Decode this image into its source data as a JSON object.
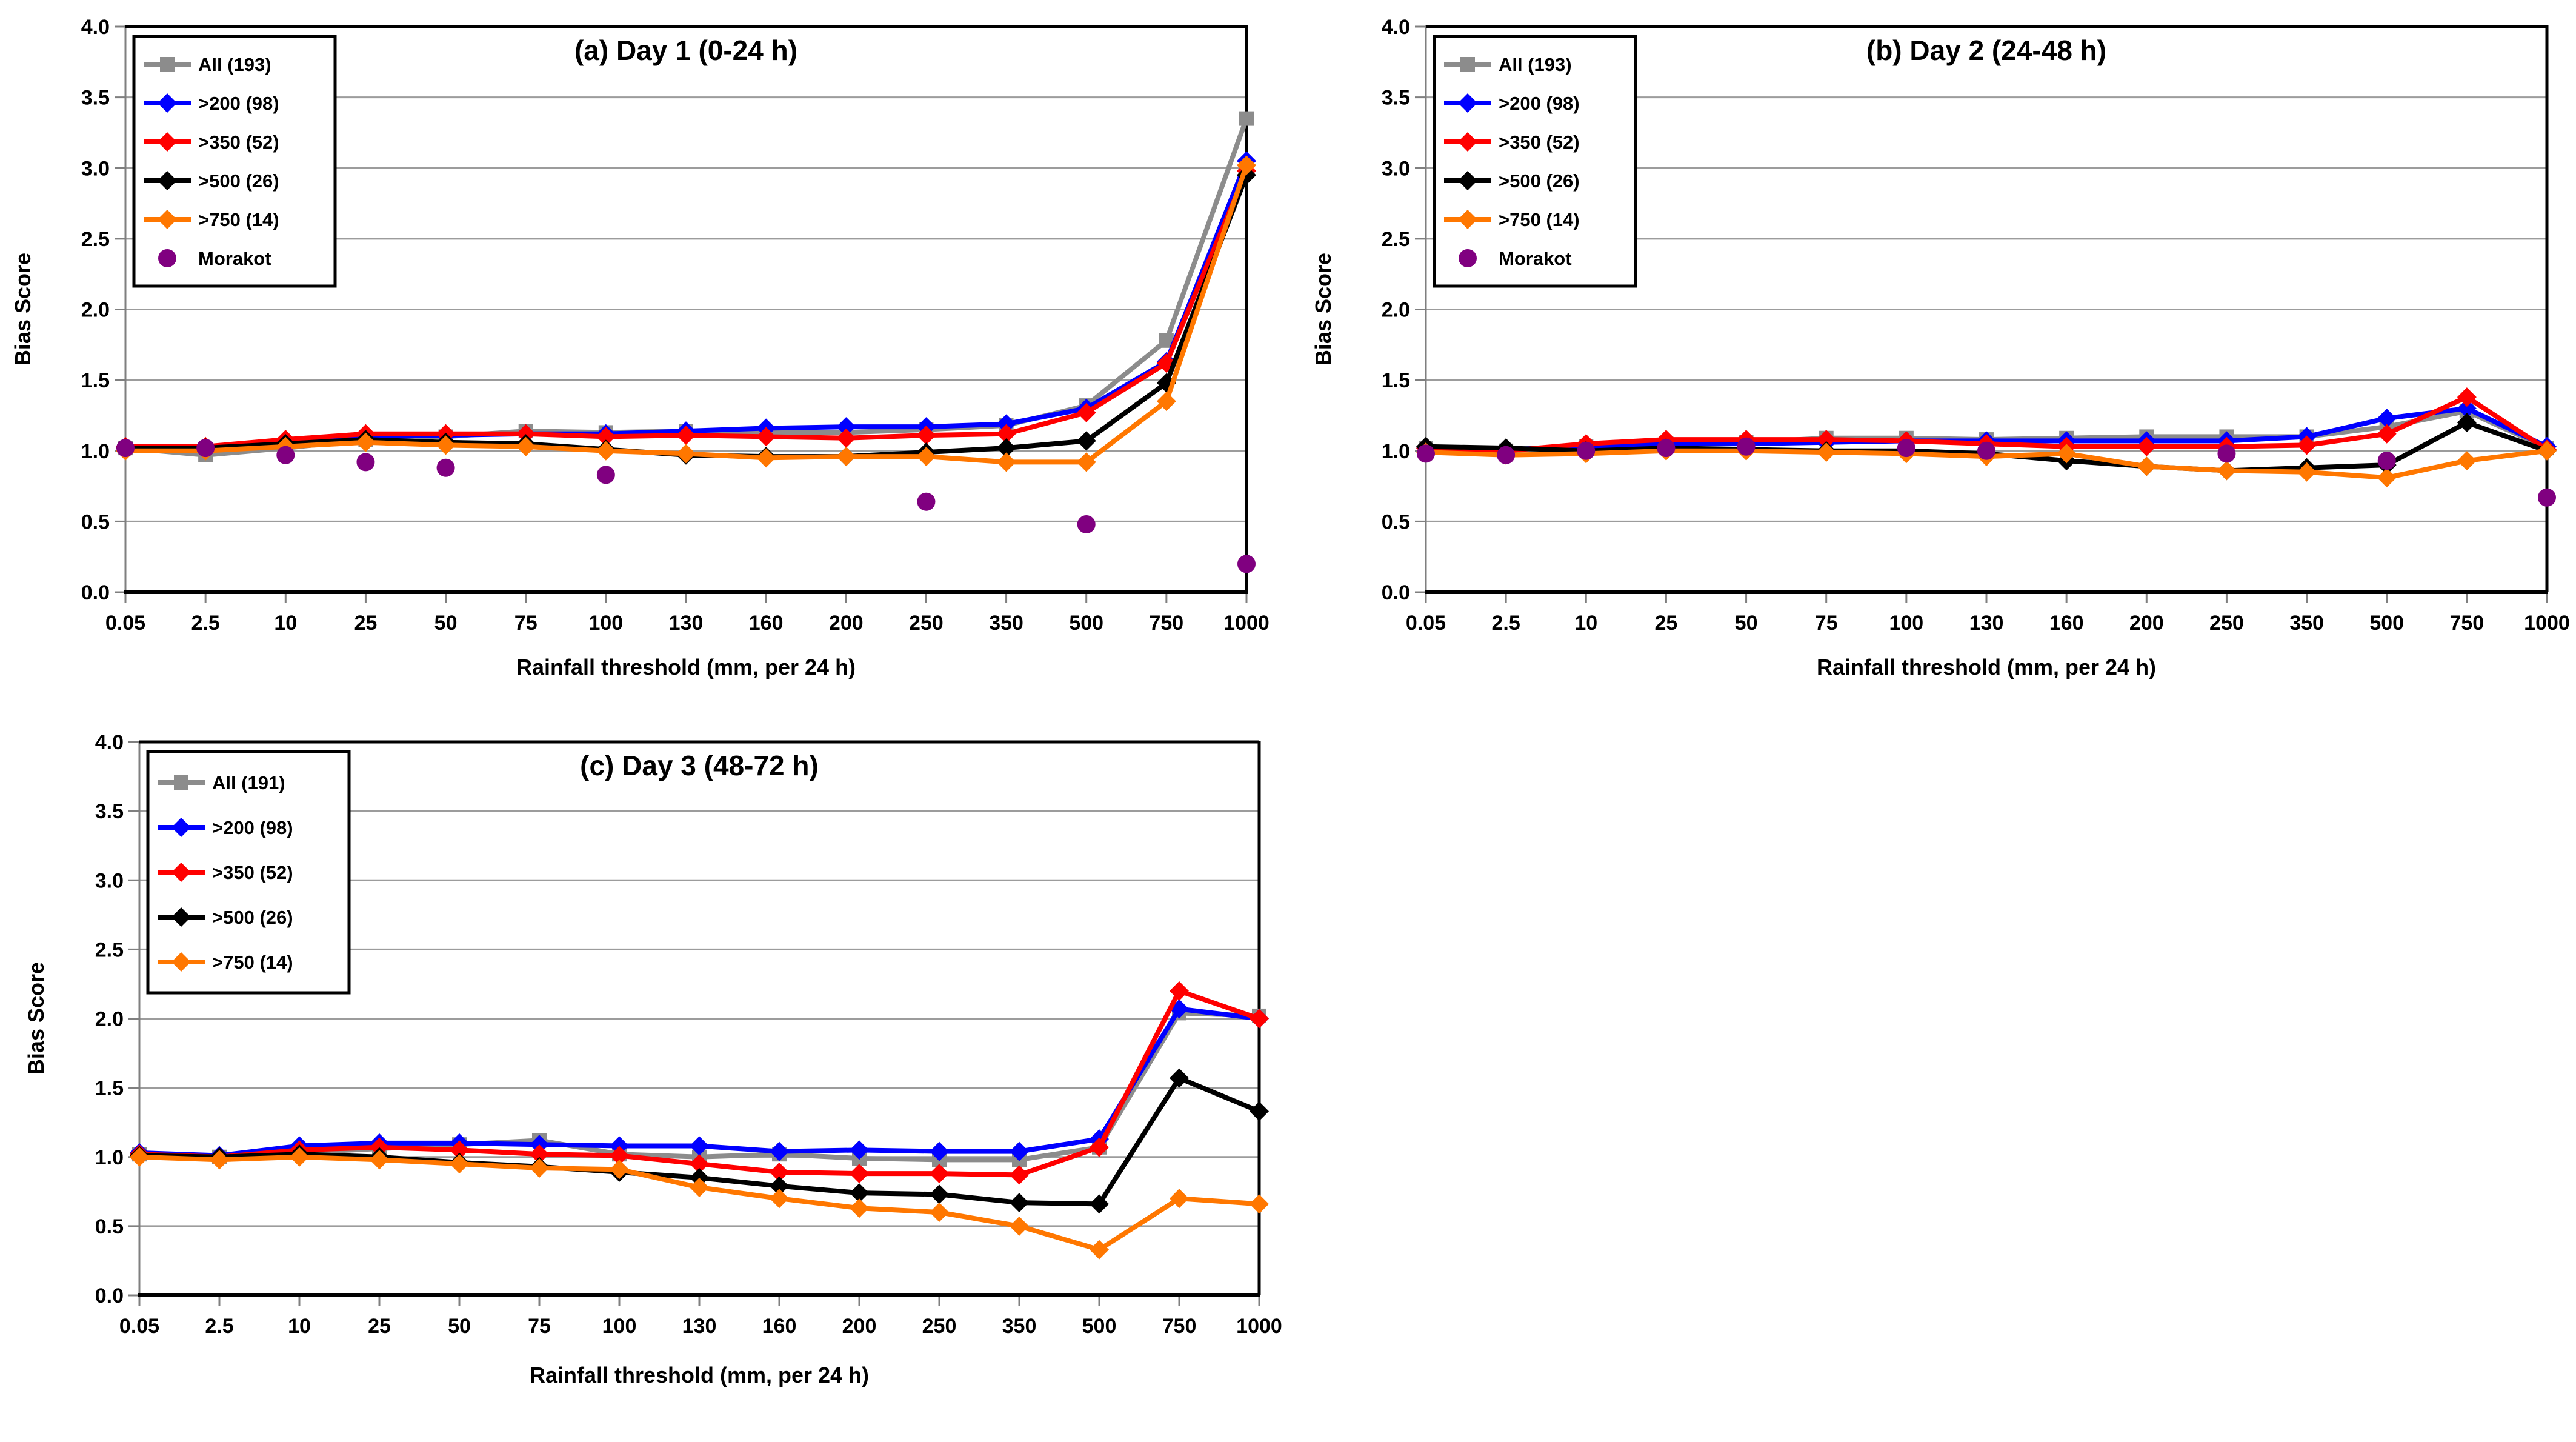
{
  "figure": {
    "background": "#FFFFFF",
    "description": "Three-panel line chart figure of Bias Score versus rainfall threshold"
  },
  "style": {
    "grid_color": "#9C9C9C",
    "tick_color": "#7F7F7F",
    "axis_color": "#000000",
    "series_gray": "#8C8C8C",
    "series_blue": "#0000FF",
    "series_red": "#FF0000",
    "series_black": "#000000",
    "series_orange": "#FF7700",
    "series_purple": "#800080"
  },
  "chart_data": [
    {
      "type": "line",
      "panel_label": "a",
      "title": "(a) Day 1 (0-24 h)",
      "xlabel": "Rainfall threshold (mm, per 24 h)",
      "ylabel": "Bias Score",
      "ylim": [
        0,
        4
      ],
      "ytick_step": 0.5,
      "yticks": [
        "0.0",
        "0.5",
        "1.0",
        "1.5",
        "2.0",
        "2.5",
        "3.0",
        "3.5",
        "4.0"
      ],
      "categories": [
        "0.05",
        "2.5",
        "10",
        "25",
        "50",
        "75",
        "100",
        "130",
        "160",
        "200",
        "250",
        "350",
        "500",
        "750",
        "1000"
      ],
      "grid": true,
      "legend_position": "top-left",
      "series": [
        {
          "name": "All (193)",
          "color": "#8C8C8C",
          "marker": "square",
          "values": [
            1.02,
            0.97,
            1.02,
            1.08,
            1.1,
            1.14,
            1.13,
            1.14,
            1.13,
            1.13,
            1.15,
            1.18,
            1.32,
            1.78,
            3.35
          ]
        },
        {
          "name": ">200 (98)",
          "color": "#0000FF",
          "marker": "diamond",
          "values": [
            1.03,
            1.02,
            1.06,
            1.1,
            1.11,
            1.12,
            1.12,
            1.14,
            1.16,
            1.17,
            1.17,
            1.19,
            1.3,
            1.63,
            3.05
          ]
        },
        {
          "name": ">350 (52)",
          "color": "#FF0000",
          "marker": "diamond",
          "values": [
            1.03,
            1.03,
            1.08,
            1.12,
            1.12,
            1.12,
            1.1,
            1.11,
            1.1,
            1.09,
            1.11,
            1.12,
            1.27,
            1.62,
            2.98
          ]
        },
        {
          "name": ">500 (26)",
          "color": "#000000",
          "marker": "diamond",
          "values": [
            1.02,
            1.02,
            1.05,
            1.08,
            1.06,
            1.05,
            1.01,
            0.97,
            0.96,
            0.96,
            0.99,
            1.02,
            1.07,
            1.48,
            2.95
          ]
        },
        {
          "name": ">750 (14)",
          "color": "#FF7700",
          "marker": "diamond",
          "values": [
            1.0,
            1.0,
            1.03,
            1.06,
            1.04,
            1.03,
            1.0,
            0.98,
            0.95,
            0.96,
            0.96,
            0.92,
            0.92,
            1.35,
            3.02
          ]
        },
        {
          "name": "Morakot",
          "color": "#800080",
          "marker": "circle",
          "line": false,
          "values": [
            1.02,
            1.02,
            0.97,
            0.92,
            0.88,
            null,
            0.83,
            null,
            null,
            null,
            0.64,
            null,
            0.48,
            null,
            0.2
          ]
        }
      ]
    },
    {
      "type": "line",
      "panel_label": "b",
      "title": "(b) Day 2 (24-48 h)",
      "xlabel": "Rainfall threshold (mm, per 24 h)",
      "ylabel": "Bias Score",
      "ylim": [
        0,
        4
      ],
      "ytick_step": 0.5,
      "yticks": [
        "0.0",
        "0.5",
        "1.0",
        "1.5",
        "2.0",
        "2.5",
        "3.0",
        "3.5",
        "4.0"
      ],
      "categories": [
        "0.05",
        "2.5",
        "10",
        "25",
        "50",
        "75",
        "100",
        "130",
        "160",
        "200",
        "250",
        "350",
        "500",
        "750",
        "1000"
      ],
      "grid": true,
      "legend_position": "top-left",
      "series": [
        {
          "name": "All (193)",
          "color": "#8C8C8C",
          "marker": "square",
          "values": [
            1.02,
            1.0,
            1.03,
            1.05,
            1.06,
            1.09,
            1.09,
            1.08,
            1.09,
            1.1,
            1.1,
            1.1,
            1.17,
            1.28,
            1.02
          ]
        },
        {
          "name": ">200 (98)",
          "color": "#0000FF",
          "marker": "diamond",
          "values": [
            1.02,
            1.01,
            1.03,
            1.05,
            1.05,
            1.06,
            1.07,
            1.07,
            1.07,
            1.07,
            1.07,
            1.1,
            1.23,
            1.3,
            1.03
          ]
        },
        {
          "name": ">350 (52)",
          "color": "#FF0000",
          "marker": "diamond",
          "values": [
            1.02,
            1.0,
            1.05,
            1.08,
            1.08,
            1.08,
            1.07,
            1.05,
            1.03,
            1.03,
            1.03,
            1.04,
            1.12,
            1.38,
            1.01
          ]
        },
        {
          "name": ">500 (26)",
          "color": "#000000",
          "marker": "diamond",
          "values": [
            1.03,
            1.02,
            1.0,
            1.02,
            1.01,
            1.0,
            1.0,
            0.98,
            0.93,
            0.89,
            0.86,
            0.88,
            0.9,
            1.2,
            1.0
          ]
        },
        {
          "name": ">750 (14)",
          "color": "#FF7700",
          "marker": "diamond",
          "values": [
            0.99,
            0.97,
            0.98,
            1.0,
            1.0,
            0.99,
            0.98,
            0.96,
            0.98,
            0.89,
            0.86,
            0.85,
            0.81,
            0.93,
            1.0
          ]
        },
        {
          "name": "Morakot",
          "color": "#800080",
          "marker": "circle",
          "line": false,
          "values": [
            0.98,
            0.97,
            1.0,
            1.02,
            1.03,
            null,
            1.02,
            1.0,
            null,
            null,
            0.98,
            null,
            0.93,
            null,
            0.67
          ]
        }
      ]
    },
    {
      "type": "line",
      "panel_label": "c",
      "title": "(c) Day 3 (48-72 h)",
      "xlabel": "Rainfall threshold (mm, per 24 h)",
      "ylabel": "Bias Score",
      "ylim": [
        0,
        4
      ],
      "ytick_step": 0.5,
      "yticks": [
        "0.0",
        "0.5",
        "1.0",
        "1.5",
        "2.0",
        "2.5",
        "3.0",
        "3.5",
        "4.0"
      ],
      "categories": [
        "0.05",
        "2.5",
        "10",
        "25",
        "50",
        "75",
        "100",
        "130",
        "160",
        "200",
        "250",
        "350",
        "500",
        "750",
        "1000"
      ],
      "grid": true,
      "legend_position": "top-left",
      "series": [
        {
          "name": "All (191)",
          "color": "#8C8C8C",
          "marker": "square",
          "values": [
            1.02,
            1.0,
            1.03,
            1.06,
            1.09,
            1.12,
            1.02,
            1.0,
            1.02,
            0.99,
            0.98,
            0.98,
            1.07,
            2.04,
            2.02
          ]
        },
        {
          "name": ">200 (98)",
          "color": "#0000FF",
          "marker": "diamond",
          "values": [
            1.03,
            1.01,
            1.08,
            1.1,
            1.1,
            1.09,
            1.08,
            1.08,
            1.04,
            1.05,
            1.04,
            1.04,
            1.13,
            2.07,
            2.0
          ]
        },
        {
          "name": ">350 (52)",
          "color": "#FF0000",
          "marker": "diamond",
          "values": [
            1.02,
            1.0,
            1.05,
            1.07,
            1.05,
            1.02,
            1.01,
            0.95,
            0.89,
            0.88,
            0.88,
            0.87,
            1.07,
            2.2,
            2.0
          ]
        },
        {
          "name": ">500 (26)",
          "color": "#000000",
          "marker": "diamond",
          "values": [
            1.01,
            1.0,
            1.02,
            1.0,
            0.96,
            0.93,
            0.89,
            0.85,
            0.79,
            0.74,
            0.73,
            0.67,
            0.66,
            1.57,
            1.33
          ]
        },
        {
          "name": ">750 (14)",
          "color": "#FF7700",
          "marker": "diamond",
          "values": [
            1.0,
            0.98,
            1.0,
            0.98,
            0.95,
            0.92,
            0.91,
            0.78,
            0.7,
            0.63,
            0.6,
            0.5,
            0.33,
            0.7,
            0.66
          ]
        }
      ]
    }
  ]
}
